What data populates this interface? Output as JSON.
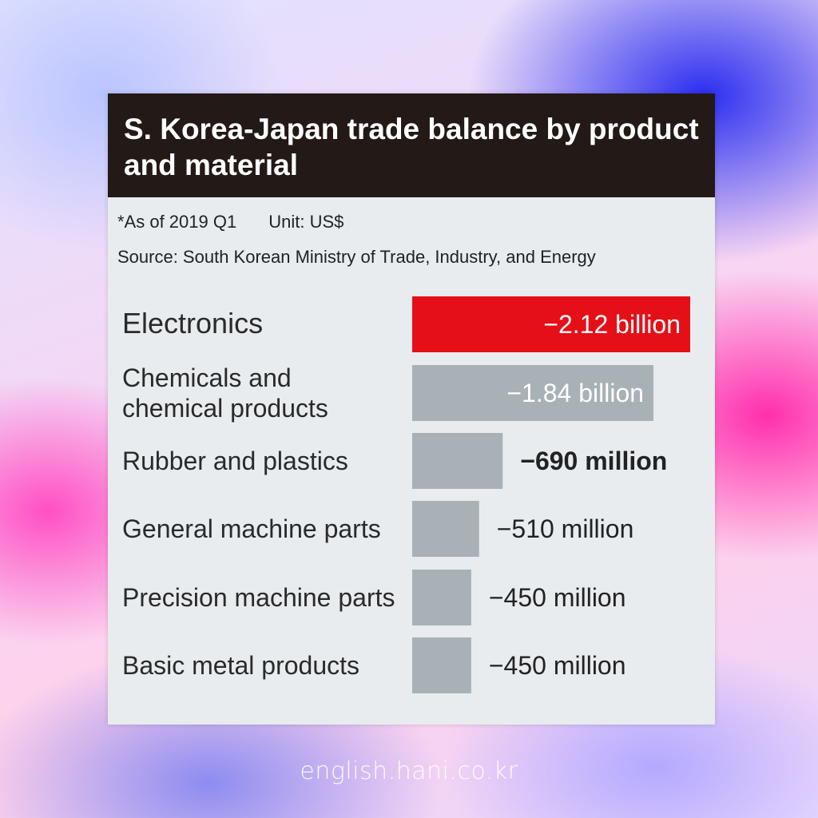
{
  "chart_data": {
    "type": "bar",
    "orientation": "horizontal",
    "title": "S. Korea-Japan trade balance by product and material",
    "notes": [
      "*As of 2019 Q1",
      "Unit: US$"
    ],
    "source": "Source: South Korean Ministry of Trade, Industry, and Energy",
    "categories": [
      [
        "Electronics"
      ],
      [
        "Chemicals and",
        "chemical products"
      ],
      [
        "Rubber and plastics"
      ],
      [
        "General machine parts"
      ],
      [
        "Precision machine parts"
      ],
      [
        "Basic metal products"
      ]
    ],
    "values": [
      -2.12,
      -1.84,
      -0.69,
      -0.51,
      -0.45,
      -0.45
    ],
    "value_unit": "billion US$",
    "labels": [
      "−2.12 billion",
      "−1.84 billion",
      "−690 million",
      "−510 million",
      "−450 million",
      "−450 million"
    ],
    "label_inside": [
      true,
      true,
      false,
      false,
      false,
      false
    ],
    "colors": [
      "#e50f18",
      "#a8b1b6",
      "#a8b1b6",
      "#a8b1b6",
      "#a8b1b6",
      "#a8b1b6"
    ],
    "highlight_color": "#e50f18",
    "bar_color": "#a8b1b6"
  },
  "watermark": "english.hani.co.kr"
}
